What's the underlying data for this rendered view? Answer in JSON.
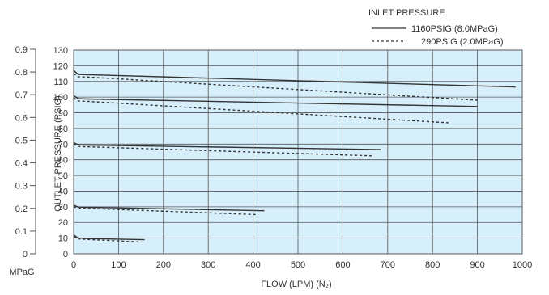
{
  "chart_data": {
    "type": "line",
    "xlabel": "FLOW (LPM) (N₂)",
    "ylabel": "OUTLET PRESSURE (PSIG)",
    "secondary_axis_unit": "MPaG",
    "legend_title": "INLET PRESSURE",
    "xlim": [
      0,
      1000
    ],
    "ylim": [
      0,
      130
    ],
    "x_ticks": [
      "0",
      "100",
      "200",
      "300",
      "400",
      "500",
      "600",
      "700",
      "800",
      "900",
      "1000"
    ],
    "y_ticks": [
      "0",
      "10",
      "20",
      "30",
      "40",
      "50",
      "60",
      "70",
      "80",
      "90",
      "100",
      "110",
      "120",
      "130"
    ],
    "secondary_ylim": [
      0,
      0.9
    ],
    "secondary_ticks": [
      "0",
      "0.1",
      "0.2",
      "0.3",
      "0.4",
      "0.5",
      "0.6",
      "0.7",
      "0.8",
      "0.9"
    ],
    "grid": true,
    "plot_background": "#d6effa",
    "legend_position": "top-right",
    "series": [
      {
        "name": "1160PSIG (8.0MPaG)",
        "style": "solid",
        "color": "#333333",
        "curves": [
          [
            [
              0,
              12
            ],
            [
              10,
              10
            ],
            [
              30,
              9.7
            ],
            [
              158,
              9
            ]
          ],
          [
            [
              0,
              31
            ],
            [
              10,
              29.8
            ],
            [
              30,
              29.7
            ],
            [
              425,
              27.5
            ]
          ],
          [
            [
              0,
              71
            ],
            [
              10,
              69.5
            ],
            [
              30,
              69.4
            ],
            [
              685,
              66.5
            ]
          ],
          [
            [
              0,
              101
            ],
            [
              10,
              99
            ],
            [
              30,
              98.8
            ],
            [
              900,
              94
            ]
          ],
          [
            [
              0,
              117
            ],
            [
              10,
              114.5
            ],
            [
              30,
              114.3
            ],
            [
              985,
              106.5
            ]
          ]
        ]
      },
      {
        "name": "290PSIG (2.0MPaG)",
        "style": "dashed",
        "color": "#333333",
        "curves": [
          [
            [
              0,
              11
            ],
            [
              10,
              9.5
            ],
            [
              30,
              9.2
            ],
            [
              148,
              7.5
            ]
          ],
          [
            [
              0,
              30
            ],
            [
              10,
              29.2
            ],
            [
              30,
              29
            ],
            [
              410,
              25
            ]
          ],
          [
            [
              0,
              70
            ],
            [
              10,
              68.5
            ],
            [
              30,
              68.3
            ],
            [
              665,
              62.5
            ]
          ],
          [
            [
              0,
              99.5
            ],
            [
              10,
              97.5
            ],
            [
              30,
              97.3
            ],
            [
              840,
              83.5
            ]
          ],
          [
            [
              0,
              115
            ],
            [
              10,
              113
            ],
            [
              30,
              112.8
            ],
            [
              900,
              98
            ]
          ]
        ]
      }
    ]
  }
}
